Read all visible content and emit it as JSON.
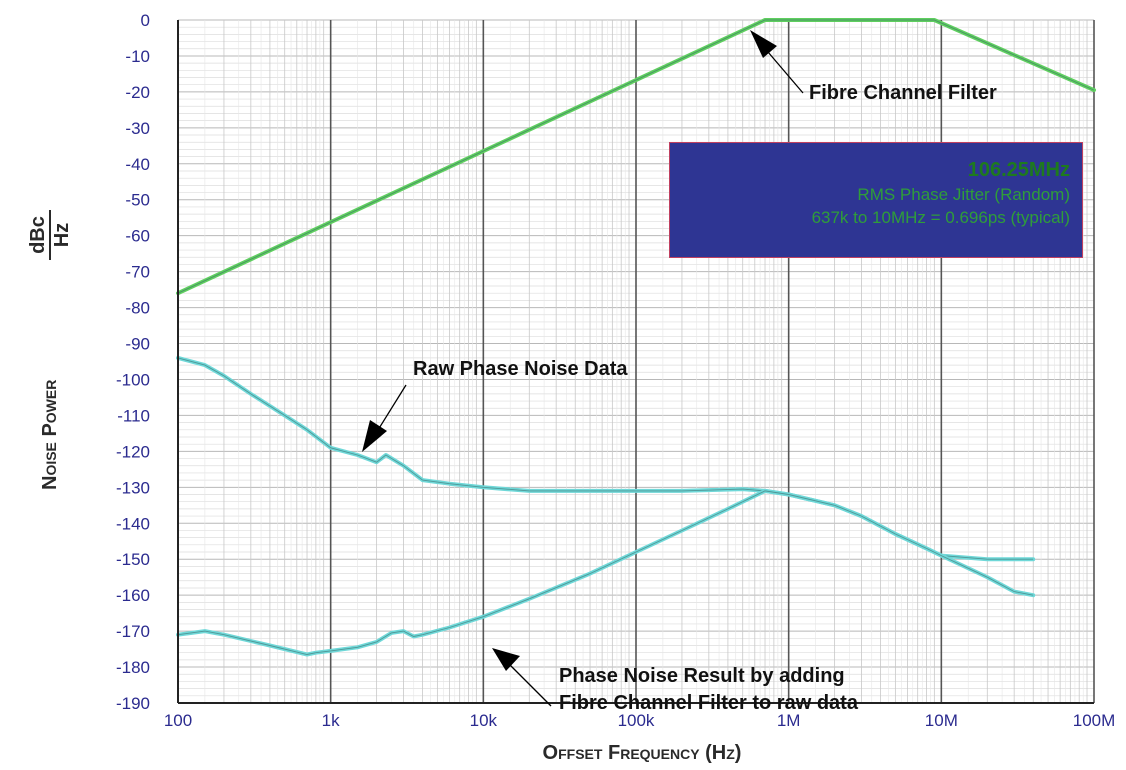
{
  "chart_data": {
    "type": "line",
    "xlabel": "Offset Frequency (Hz)",
    "ylabel_main": "Noise Power",
    "ylabel_unit_num": "dBc",
    "ylabel_unit_den": "Hz",
    "x_scale": "log",
    "xlim": [
      100,
      100000000
    ],
    "ylim": [
      -190,
      0
    ],
    "grid": true,
    "x_ticks": [
      {
        "value": 100,
        "label": "100"
      },
      {
        "value": 1000,
        "label": "1k"
      },
      {
        "value": 10000,
        "label": "10k"
      },
      {
        "value": 100000,
        "label": "100k"
      },
      {
        "value": 1000000,
        "label": "1M"
      },
      {
        "value": 10000000,
        "label": "10M"
      },
      {
        "value": 100000000,
        "label": "100M"
      }
    ],
    "y_ticks": [
      0,
      -10,
      -20,
      -30,
      -40,
      -50,
      -60,
      -70,
      -80,
      -90,
      -100,
      -110,
      -120,
      -130,
      -140,
      -150,
      -160,
      -170,
      -180,
      -190
    ],
    "series": [
      {
        "color": "#5fcf5f",
        "points": [
          [
            100,
            -76
          ],
          [
            700000,
            0
          ],
          [
            9000000,
            0
          ],
          [
            100000000,
            -19.5
          ]
        ]
      },
      {
        "color": "#6fd8d8",
        "points": [
          [
            100,
            -94
          ],
          [
            150,
            -96
          ],
          [
            200,
            -99
          ],
          [
            300,
            -104
          ],
          [
            500,
            -110
          ],
          [
            700,
            -114
          ],
          [
            1000,
            -119
          ],
          [
            1500,
            -121
          ],
          [
            2000,
            -123
          ],
          [
            2300,
            -121
          ],
          [
            3000,
            -124
          ],
          [
            4000,
            -128
          ],
          [
            6000,
            -129
          ],
          [
            10000,
            -130
          ],
          [
            20000,
            -131
          ],
          [
            50000,
            -131
          ],
          [
            100000,
            -131
          ],
          [
            200000,
            -131
          ],
          [
            500000,
            -130.5
          ],
          [
            700000,
            -131
          ],
          [
            1000000,
            -132
          ],
          [
            2000000,
            -135
          ],
          [
            3000000,
            -138
          ],
          [
            5000000,
            -143
          ],
          [
            8000000,
            -147
          ],
          [
            10000000,
            -149
          ],
          [
            20000000,
            -150
          ],
          [
            40000000,
            -150
          ]
        ]
      },
      {
        "color": "#6fd8d8",
        "points": [
          [
            100,
            -171
          ],
          [
            150,
            -170
          ],
          [
            200,
            -171
          ],
          [
            400,
            -174
          ],
          [
            700,
            -176.5
          ],
          [
            800,
            -176
          ],
          [
            1000,
            -175.5
          ],
          [
            1500,
            -174.5
          ],
          [
            2000,
            -173
          ],
          [
            2500,
            -170.5
          ],
          [
            3000,
            -170
          ],
          [
            3500,
            -171.5
          ],
          [
            4000,
            -171
          ],
          [
            6000,
            -169
          ],
          [
            10000,
            -166
          ],
          [
            20000,
            -161
          ],
          [
            50000,
            -154
          ],
          [
            100000,
            -148
          ],
          [
            200000,
            -142
          ],
          [
            400000,
            -136
          ],
          [
            700000,
            -131
          ],
          [
            1000000,
            -132
          ],
          [
            2000000,
            -135
          ],
          [
            3000000,
            -138
          ],
          [
            5000000,
            -143
          ],
          [
            8000000,
            -147
          ],
          [
            10000000,
            -149
          ],
          [
            20000000,
            -155
          ],
          [
            30000000,
            -159
          ],
          [
            40000000,
            -160
          ]
        ]
      }
    ],
    "annotations": {
      "fibre_filter": "Fibre Channel Filter",
      "raw_noise": "Raw Phase Noise Data",
      "result_line1": "Phase Noise Result by adding",
      "result_line2": "Fibre Channel Filter to raw data"
    },
    "info_box": {
      "frequency": "106.25MHz",
      "line1": "RMS Phase Jitter (Random)",
      "line2": "637k to 10MHz = 0.696ps (typical)"
    }
  }
}
